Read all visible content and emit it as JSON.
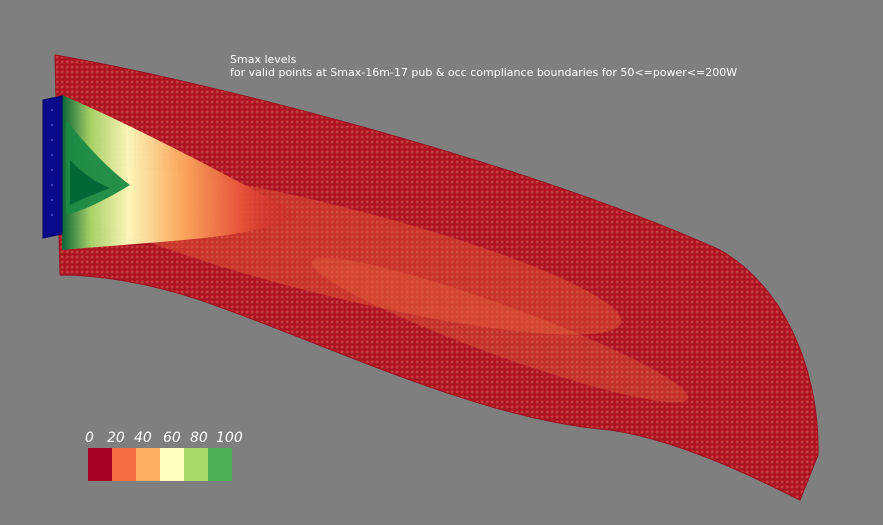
{
  "title": "Smax levels",
  "subtitle": "for valid points at Smax-16m-17 pub & occ compliance boundaries for 50<=power<=200W",
  "legend": {
    "labels": [
      "0",
      "20",
      "40",
      "60",
      "80",
      "100"
    ],
    "colors": [
      "#a50026",
      "#f46d43",
      "#fdae61",
      "#ffffbf",
      "#a6d96a",
      "#4daf55"
    ]
  },
  "colors": {
    "background": "#7f7f7f",
    "antenna_panel": "#0a0a8c",
    "dominant_point": "#b01020"
  }
}
